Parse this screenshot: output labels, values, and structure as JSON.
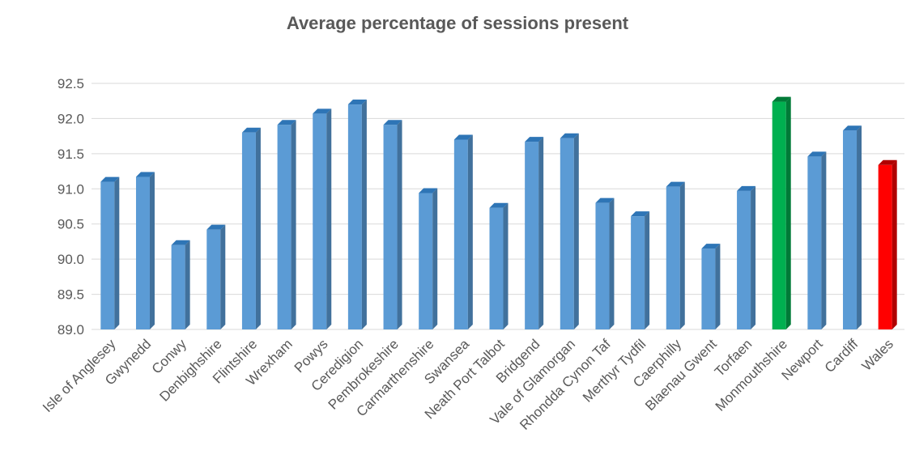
{
  "chart_data": {
    "type": "bar",
    "title": "Average percentage of sessions present",
    "xlabel": "",
    "ylabel": "",
    "ylim": [
      89.0,
      92.5
    ],
    "yticks": [
      "89.0",
      "89.5",
      "90.0",
      "90.5",
      "91.0",
      "91.5",
      "92.0",
      "92.5"
    ],
    "grid": true,
    "categories": [
      "Isle of Anglesey",
      "Gwynedd",
      "Conwy",
      "Denbighshire",
      "Flintshire",
      "Wrexham",
      "Powys",
      "Ceredigion",
      "Pembrokeshire",
      "Carmarthenshire",
      "Swansea",
      "Neath Port Talbot",
      "Bridgend",
      "Vale of Glamorgan",
      "Rhondda Cynon Taf",
      "Merthyr Tydfil",
      "Caerphilly",
      "Blaenau Gwent",
      "Torfaen",
      "Monmouthshire",
      "Newport",
      "Cardiff",
      "Wales"
    ],
    "values": [
      91.1,
      91.17,
      90.2,
      90.42,
      91.8,
      91.91,
      92.07,
      92.2,
      91.91,
      90.94,
      91.7,
      90.73,
      91.67,
      91.72,
      90.8,
      90.61,
      91.03,
      90.15,
      90.97,
      92.24,
      91.46,
      91.83,
      91.34
    ],
    "colors": {
      "default": "#5b9bd5",
      "default_side": "#41719c",
      "default_top": "#2e75b6",
      "highlight_green": "#00b050",
      "highlight_green_side": "#007a37",
      "highlight_red": "#ff0000",
      "highlight_red_side": "#b00000",
      "axis_text": "#595959",
      "grid": "#d9d9d9"
    },
    "highlights": {
      "Monmouthshire": "green",
      "Wales": "red"
    }
  }
}
